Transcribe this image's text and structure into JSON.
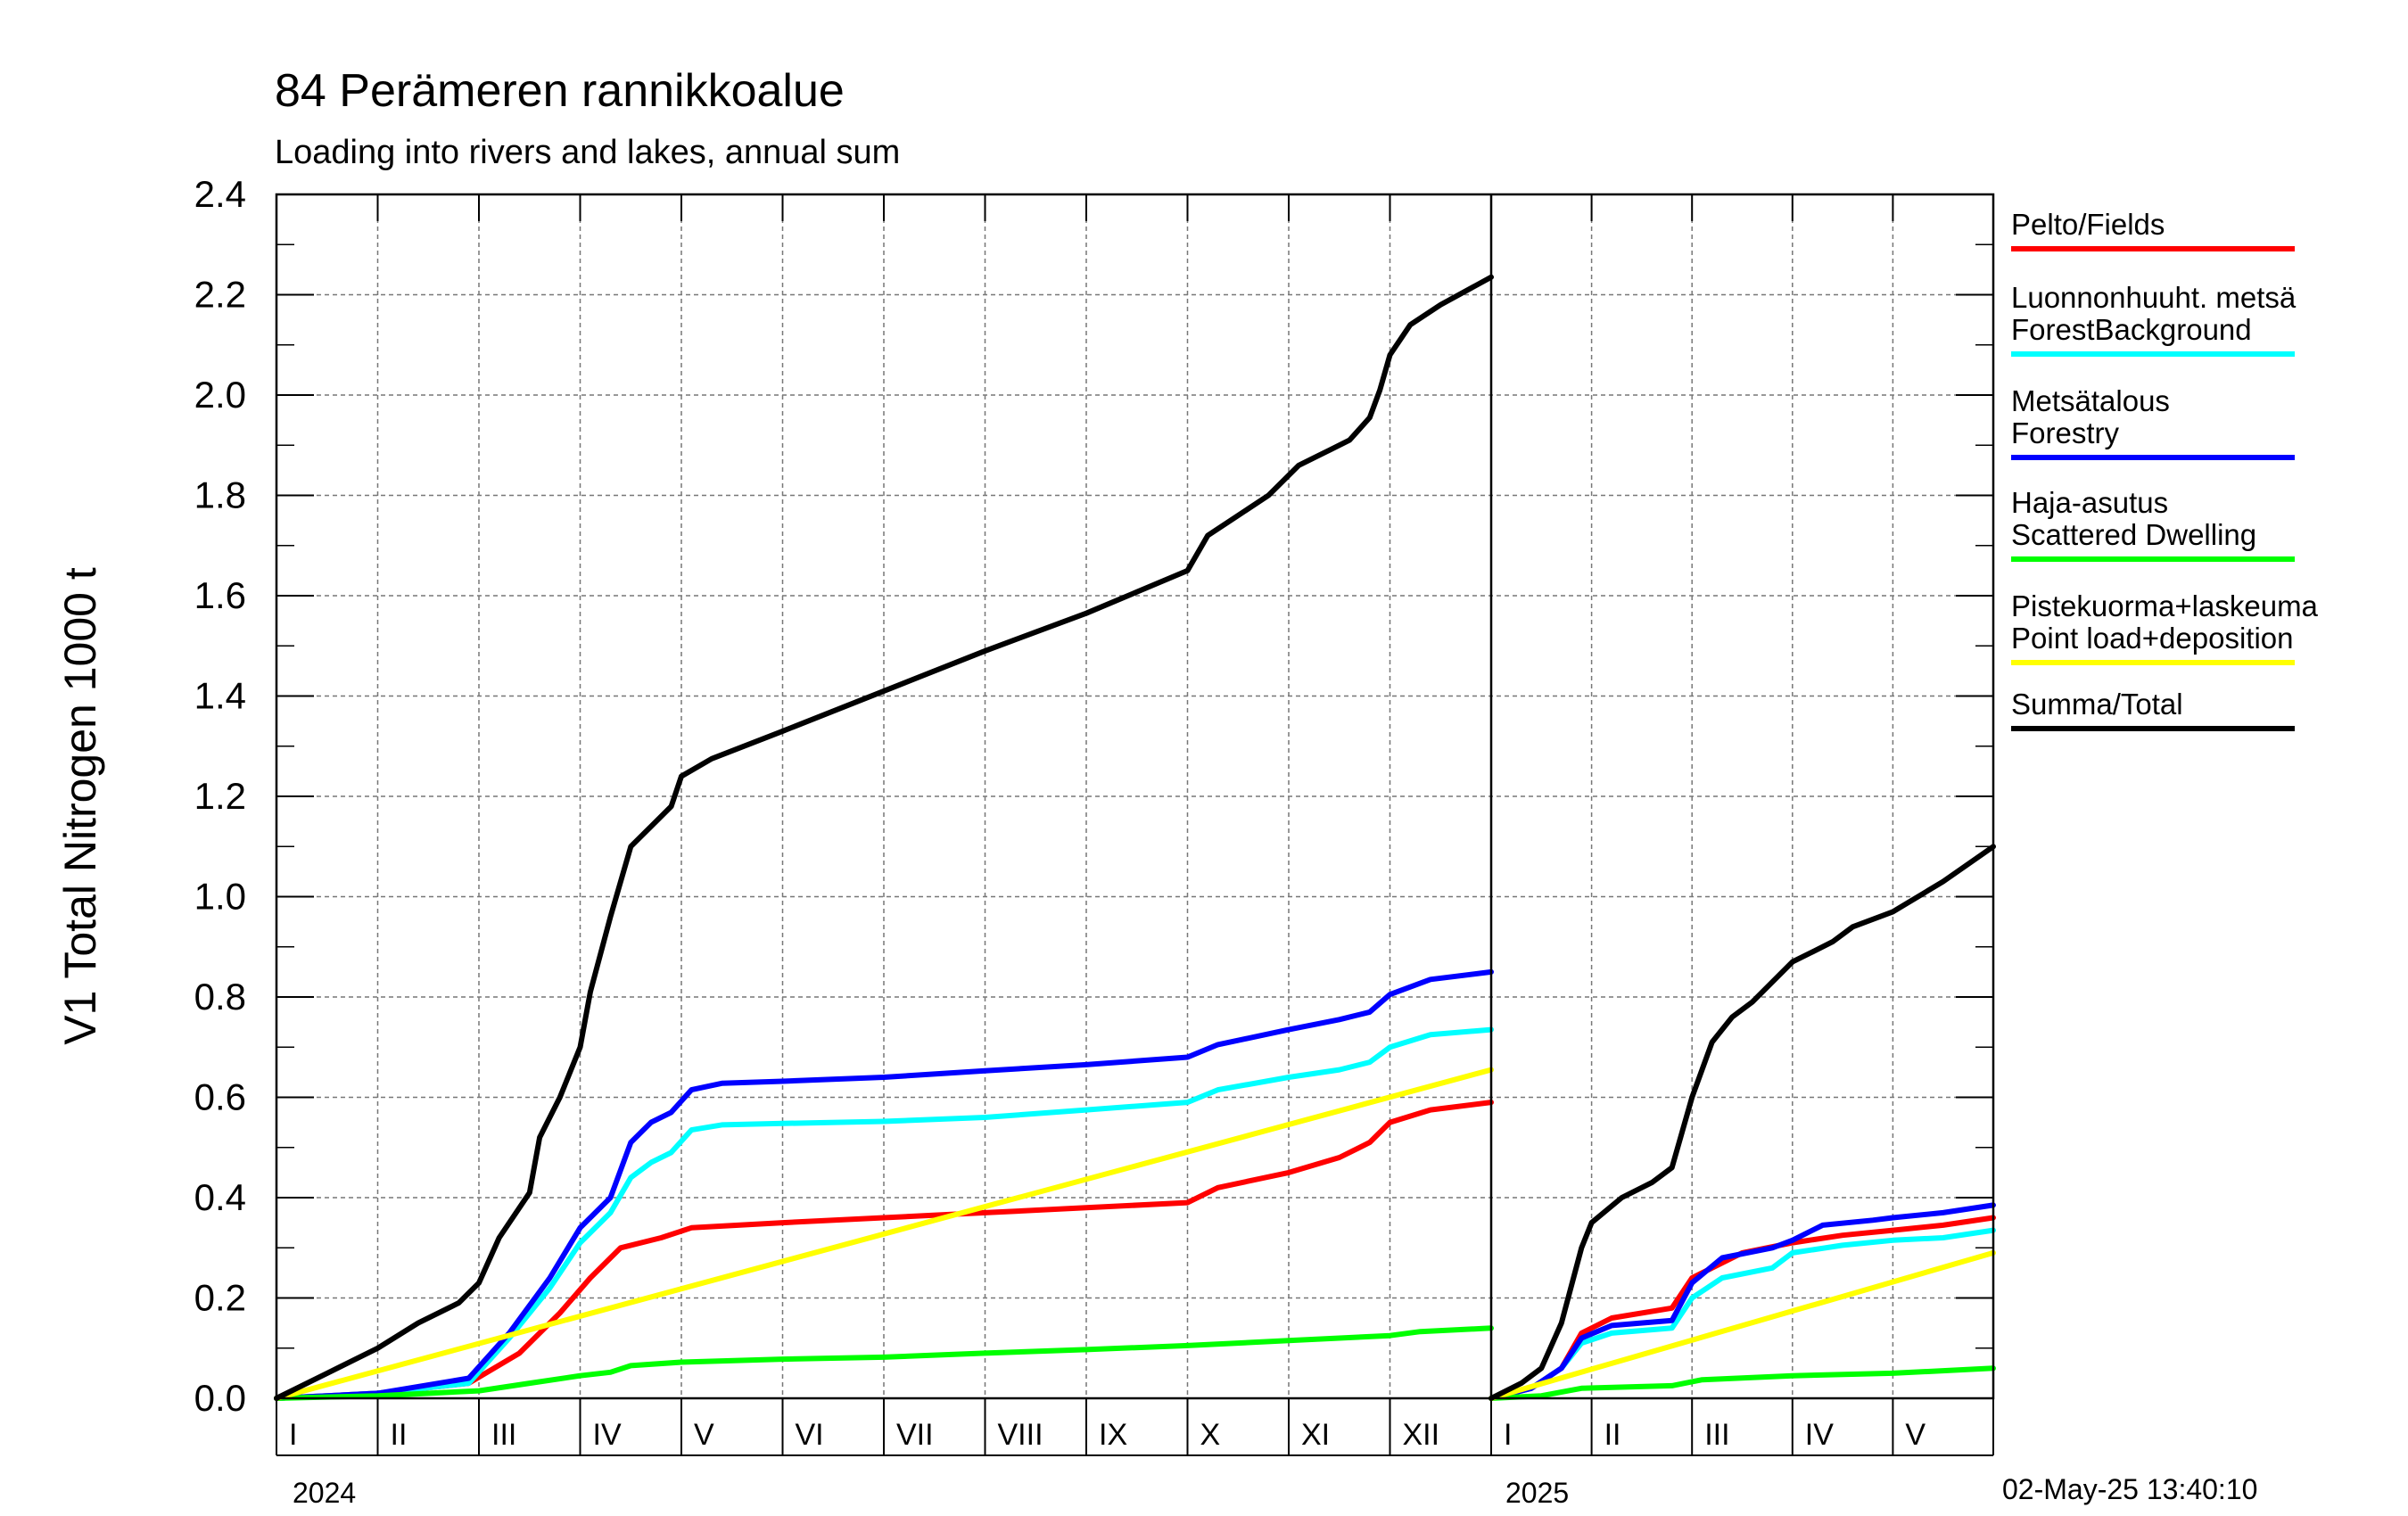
{
  "title": "84 Perämeren rannikkoalue",
  "subtitle": "Loading into rivers and lakes, annual sum",
  "timestamp": "02-May-25 13:40:10",
  "chart_data": {
    "type": "line",
    "ylabel": "V1 Total Nitrogen 1000 t",
    "ylim": [
      0.0,
      2.4
    ],
    "yticks": [
      "0.0",
      "0.2",
      "0.4",
      "0.6",
      "0.8",
      "1.0",
      "1.2",
      "1.4",
      "1.6",
      "1.8",
      "2.0",
      "2.2",
      "2.4"
    ],
    "grid": true,
    "legend_position": "right",
    "panels": [
      {
        "year": "2024",
        "months": [
          "I",
          "II",
          "III",
          "IV",
          "V",
          "VI",
          "VII",
          "VIII",
          "IX",
          "X",
          "XI",
          "XII"
        ],
        "month_count": 12,
        "series": [
          {
            "name": "Pelto/Fields",
            "color": "#ff0000",
            "points": [
              [
                0,
                0
              ],
              [
                1,
                0.01
              ],
              [
                1.9,
                0.03
              ],
              [
                2.4,
                0.09
              ],
              [
                2.8,
                0.17
              ],
              [
                3.1,
                0.24
              ],
              [
                3.4,
                0.3
              ],
              [
                3.8,
                0.32
              ],
              [
                4.1,
                0.34
              ],
              [
                5,
                0.35
              ],
              [
                6,
                0.36
              ],
              [
                7,
                0.37
              ],
              [
                8,
                0.38
              ],
              [
                9,
                0.39
              ],
              [
                9.3,
                0.42
              ],
              [
                10,
                0.45
              ],
              [
                10.5,
                0.48
              ],
              [
                10.8,
                0.51
              ],
              [
                11,
                0.55
              ],
              [
                11.4,
                0.575
              ],
              [
                12,
                0.59
              ]
            ]
          },
          {
            "name": "Luonnonhuuht. metsä ForestBackground",
            "color": "#00ffff",
            "points": [
              [
                0,
                0
              ],
              [
                1,
                0.01
              ],
              [
                1.9,
                0.03
              ],
              [
                2.3,
                0.12
              ],
              [
                2.7,
                0.22
              ],
              [
                3.0,
                0.31
              ],
              [
                3.3,
                0.37
              ],
              [
                3.5,
                0.44
              ],
              [
                3.7,
                0.47
              ],
              [
                3.9,
                0.49
              ],
              [
                4.1,
                0.535
              ],
              [
                4.4,
                0.545
              ],
              [
                5,
                0.548
              ],
              [
                6,
                0.552
              ],
              [
                7,
                0.56
              ],
              [
                8,
                0.575
              ],
              [
                9,
                0.59
              ],
              [
                9.3,
                0.615
              ],
              [
                10,
                0.64
              ],
              [
                10.5,
                0.655
              ],
              [
                10.8,
                0.67
              ],
              [
                11,
                0.7
              ],
              [
                11.4,
                0.725
              ],
              [
                12,
                0.735
              ]
            ]
          },
          {
            "name": "Metsätalous Forestry",
            "color": "#0000ff",
            "points": [
              [
                0,
                0
              ],
              [
                1,
                0.01
              ],
              [
                1.9,
                0.04
              ],
              [
                2.3,
                0.13
              ],
              [
                2.7,
                0.24
              ],
              [
                3.0,
                0.34
              ],
              [
                3.3,
                0.4
              ],
              [
                3.5,
                0.51
              ],
              [
                3.7,
                0.55
              ],
              [
                3.9,
                0.57
              ],
              [
                4.1,
                0.615
              ],
              [
                4.4,
                0.628
              ],
              [
                5,
                0.632
              ],
              [
                6,
                0.64
              ],
              [
                7,
                0.653
              ],
              [
                8,
                0.665
              ],
              [
                9,
                0.68
              ],
              [
                9.3,
                0.705
              ],
              [
                10,
                0.735
              ],
              [
                10.5,
                0.755
              ],
              [
                10.8,
                0.77
              ],
              [
                11,
                0.805
              ],
              [
                11.4,
                0.835
              ],
              [
                12,
                0.85
              ]
            ]
          },
          {
            "name": "Haja-asutus Scattered Dwelling",
            "color": "#00ff00",
            "points": [
              [
                0,
                0
              ],
              [
                1,
                0.005
              ],
              [
                2,
                0.015
              ],
              [
                2.5,
                0.03
              ],
              [
                3,
                0.045
              ],
              [
                3.3,
                0.052
              ],
              [
                3.5,
                0.065
              ],
              [
                4,
                0.072
              ],
              [
                5,
                0.078
              ],
              [
                6,
                0.082
              ],
              [
                7,
                0.09
              ],
              [
                8,
                0.097
              ],
              [
                9,
                0.105
              ],
              [
                10,
                0.115
              ],
              [
                11,
                0.125
              ],
              [
                11.3,
                0.133
              ],
              [
                12,
                0.14
              ]
            ]
          },
          {
            "name": "Pistekuorma+laskeuma Point load+deposition",
            "color": "#ffff00",
            "points": [
              [
                0,
                0
              ],
              [
                12,
                0.655
              ]
            ]
          },
          {
            "name": "Summa/Total",
            "color": "#000000",
            "points": [
              [
                0,
                0
              ],
              [
                0.5,
                0.05
              ],
              [
                1,
                0.1
              ],
              [
                1.4,
                0.15
              ],
              [
                1.8,
                0.19
              ],
              [
                2.0,
                0.23
              ],
              [
                2.2,
                0.32
              ],
              [
                2.5,
                0.41
              ],
              [
                2.6,
                0.52
              ],
              [
                2.8,
                0.6
              ],
              [
                3.0,
                0.7
              ],
              [
                3.1,
                0.81
              ],
              [
                3.3,
                0.96
              ],
              [
                3.5,
                1.1
              ],
              [
                3.7,
                1.14
              ],
              [
                3.9,
                1.18
              ],
              [
                4.0,
                1.24
              ],
              [
                4.3,
                1.275
              ],
              [
                5,
                1.33
              ],
              [
                6,
                1.41
              ],
              [
                7,
                1.49
              ],
              [
                8,
                1.565
              ],
              [
                9,
                1.65
              ],
              [
                9.2,
                1.72
              ],
              [
                9.5,
                1.76
              ],
              [
                9.8,
                1.8
              ],
              [
                10.1,
                1.86
              ],
              [
                10.4,
                1.89
              ],
              [
                10.6,
                1.91
              ],
              [
                10.8,
                1.955
              ],
              [
                10.9,
                2.01
              ],
              [
                11.0,
                2.08
              ],
              [
                11.2,
                2.14
              ],
              [
                11.5,
                2.18
              ],
              [
                12,
                2.235
              ]
            ]
          }
        ]
      },
      {
        "year": "2025",
        "months": [
          "I",
          "II",
          "III",
          "IV",
          "V"
        ],
        "month_count": 5,
        "series": [
          {
            "name": "Pelto/Fields",
            "color": "#ff0000",
            "points": [
              [
                0,
                0
              ],
              [
                0.4,
                0.02
              ],
              [
                0.7,
                0.06
              ],
              [
                0.9,
                0.13
              ],
              [
                1.2,
                0.16
              ],
              [
                1.8,
                0.18
              ],
              [
                2.0,
                0.24
              ],
              [
                2.5,
                0.29
              ],
              [
                3,
                0.31
              ],
              [
                3.5,
                0.325
              ],
              [
                4,
                0.335
              ],
              [
                4.5,
                0.345
              ],
              [
                5,
                0.36
              ]
            ]
          },
          {
            "name": "Luonnonhuuht. metsä ForestBackground",
            "color": "#00ffff",
            "points": [
              [
                0,
                0
              ],
              [
                0.4,
                0.02
              ],
              [
                0.7,
                0.06
              ],
              [
                0.9,
                0.11
              ],
              [
                1.2,
                0.13
              ],
              [
                1.8,
                0.14
              ],
              [
                2.0,
                0.2
              ],
              [
                2.3,
                0.24
              ],
              [
                2.8,
                0.26
              ],
              [
                3,
                0.29
              ],
              [
                3.5,
                0.305
              ],
              [
                4,
                0.315
              ],
              [
                4.5,
                0.32
              ],
              [
                5,
                0.335
              ]
            ]
          },
          {
            "name": "Metsätalous Forestry",
            "color": "#0000ff",
            "points": [
              [
                0,
                0
              ],
              [
                0.4,
                0.02
              ],
              [
                0.7,
                0.06
              ],
              [
                0.9,
                0.12
              ],
              [
                1.2,
                0.145
              ],
              [
                1.8,
                0.155
              ],
              [
                2.0,
                0.23
              ],
              [
                2.3,
                0.28
              ],
              [
                2.8,
                0.3
              ],
              [
                3,
                0.315
              ],
              [
                3.3,
                0.345
              ],
              [
                3.8,
                0.355
              ],
              [
                4,
                0.36
              ],
              [
                4.5,
                0.37
              ],
              [
                5,
                0.385
              ]
            ]
          },
          {
            "name": "Haja-asutus Scattered Dwelling",
            "color": "#00ff00",
            "points": [
              [
                0,
                0
              ],
              [
                0.5,
                0.005
              ],
              [
                0.9,
                0.02
              ],
              [
                1.8,
                0.025
              ],
              [
                2.1,
                0.037
              ],
              [
                3,
                0.045
              ],
              [
                4,
                0.05
              ],
              [
                5,
                0.06
              ]
            ]
          },
          {
            "name": "Pistekuorma+laskeuma Point load+deposition",
            "color": "#ffff00",
            "points": [
              [
                0,
                0
              ],
              [
                5,
                0.29
              ]
            ]
          },
          {
            "name": "Summa/Total",
            "color": "#000000",
            "points": [
              [
                0,
                0
              ],
              [
                0.3,
                0.03
              ],
              [
                0.5,
                0.06
              ],
              [
                0.7,
                0.15
              ],
              [
                0.9,
                0.3
              ],
              [
                1.0,
                0.35
              ],
              [
                1.3,
                0.4
              ],
              [
                1.6,
                0.43
              ],
              [
                1.8,
                0.46
              ],
              [
                2.0,
                0.6
              ],
              [
                2.2,
                0.71
              ],
              [
                2.4,
                0.76
              ],
              [
                2.6,
                0.79
              ],
              [
                2.8,
                0.83
              ],
              [
                3.0,
                0.87
              ],
              [
                3.2,
                0.89
              ],
              [
                3.4,
                0.91
              ],
              [
                3.6,
                0.94
              ],
              [
                4,
                0.97
              ],
              [
                4.5,
                1.03
              ],
              [
                5,
                1.1
              ]
            ]
          }
        ]
      }
    ]
  },
  "legend": [
    {
      "lines": [
        "Pelto/Fields"
      ],
      "color": "#ff0000"
    },
    {
      "lines": [
        "Luonnonhuuht. metsä",
        "ForestBackground"
      ],
      "color": "#00ffff"
    },
    {
      "lines": [
        "Metsätalous",
        "Forestry"
      ],
      "color": "#0000ff"
    },
    {
      "lines": [
        "Haja-asutus",
        "Scattered Dwelling"
      ],
      "color": "#00ff00"
    },
    {
      "lines": [
        "Pistekuorma+laskeuma",
        "Point load+deposition"
      ],
      "color": "#ffff00"
    },
    {
      "lines": [
        "Summa/Total"
      ],
      "color": "#000000"
    }
  ]
}
